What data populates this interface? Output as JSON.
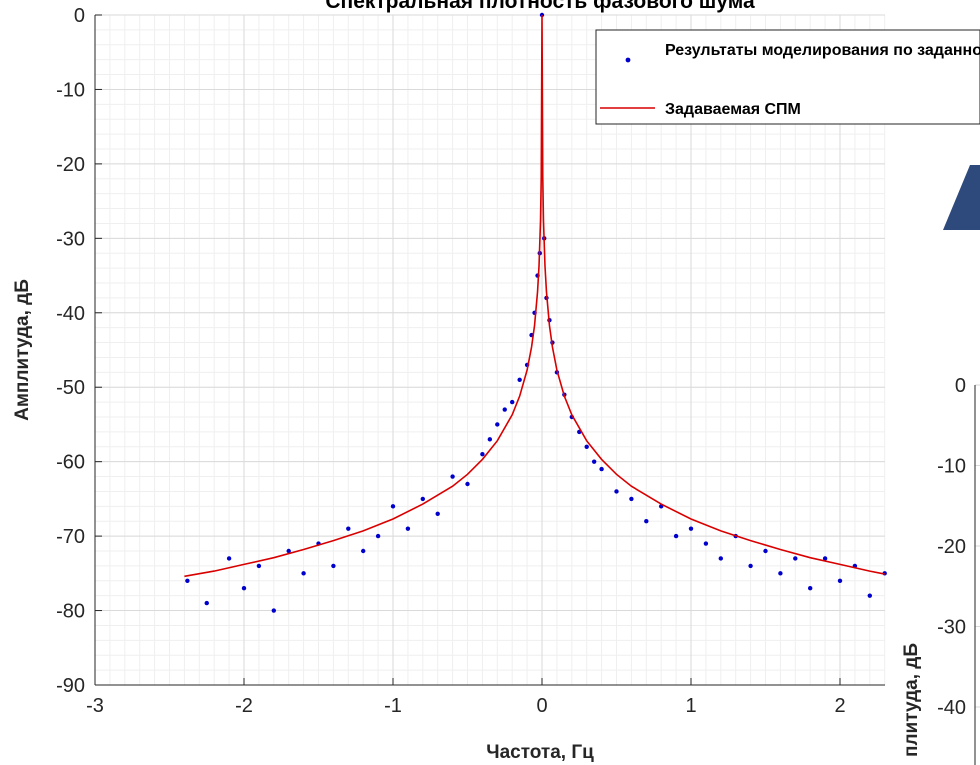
{
  "chart_data": [
    {
      "type": "scatter",
      "title": "Спектральная плотность фазового шума",
      "xlabel": "Частота, Гц",
      "ylabel": "Амплитуда, дБ",
      "xlim": [
        -3,
        2.3
      ],
      "ylim": [
        -90,
        0
      ],
      "xticks": [
        -3,
        -2,
        -1,
        0,
        1,
        2
      ],
      "xtick_labels": [
        "-3",
        "-2",
        "-1",
        "0",
        "1",
        "2"
      ],
      "yticks": [
        0,
        -10,
        -20,
        -30,
        -40,
        -50,
        -60,
        -70,
        -80,
        -90
      ],
      "ytick_labels": [
        "0",
        "-10",
        "-20",
        "-30",
        "-40",
        "-50",
        "-60",
        "-70",
        "-80",
        "-90"
      ],
      "grid": true,
      "minor_grid": true,
      "legend_position": "top-right",
      "series": [
        {
          "name": "Результаты моделирования по заданной СПМ",
          "kind": "scatter",
          "color": "#0000CD",
          "x": [
            -2.38,
            -2.25,
            -2.1,
            -2.0,
            -1.9,
            -1.8,
            -1.7,
            -1.6,
            -1.5,
            -1.4,
            -1.3,
            -1.2,
            -1.1,
            -1.0,
            -0.9,
            -0.8,
            -0.7,
            -0.6,
            -0.5,
            -0.4,
            -0.35,
            -0.3,
            -0.25,
            -0.2,
            -0.15,
            -0.1,
            -0.07,
            -0.05,
            -0.03,
            -0.015,
            0.0,
            0.015,
            0.03,
            0.05,
            0.07,
            0.1,
            0.15,
            0.2,
            0.25,
            0.3,
            0.35,
            0.4,
            0.5,
            0.6,
            0.7,
            0.8,
            0.9,
            1.0,
            1.1,
            1.2,
            1.3,
            1.4,
            1.5,
            1.6,
            1.7,
            1.8,
            1.9,
            2.0,
            2.1,
            2.2,
            2.3
          ],
          "y": [
            -76,
            -79,
            -73,
            -77,
            -74,
            -80,
            -72,
            -75,
            -71,
            -74,
            -69,
            -72,
            -70,
            -66,
            -69,
            -65,
            -67,
            -62,
            -63,
            -59,
            -57,
            -55,
            -53,
            -52,
            -49,
            -47,
            -43,
            -40,
            -35,
            -32,
            0,
            -30,
            -38,
            -41,
            -44,
            -48,
            -51,
            -54,
            -56,
            -58,
            -60,
            -61,
            -64,
            -65,
            -68,
            -66,
            -70,
            -69,
            -71,
            -73,
            -70,
            -74,
            -72,
            -75,
            -73,
            -77,
            -73,
            -76,
            -74,
            -78,
            -75
          ]
        },
        {
          "name": "Задаваемая СПМ",
          "kind": "line",
          "color": "#D90000",
          "x": [
            -2.4,
            -2.2,
            -2.0,
            -1.8,
            -1.6,
            -1.4,
            -1.2,
            -1.0,
            -0.8,
            -0.6,
            -0.5,
            -0.4,
            -0.3,
            -0.2,
            -0.15,
            -0.1,
            -0.07,
            -0.05,
            -0.03,
            -0.02,
            -0.01,
            -0.005,
            0.0,
            0.005,
            0.01,
            0.02,
            0.03,
            0.05,
            0.07,
            0.1,
            0.15,
            0.2,
            0.3,
            0.4,
            0.5,
            0.6,
            0.8,
            1.0,
            1.2,
            1.4,
            1.6,
            1.8,
            2.0,
            2.2,
            2.3
          ],
          "y": [
            -75.4,
            -74.7,
            -73.8,
            -72.9,
            -71.8,
            -70.6,
            -69.3,
            -67.7,
            -65.7,
            -63.3,
            -61.7,
            -59.7,
            -57.2,
            -53.7,
            -51.2,
            -47.7,
            -44.6,
            -41.7,
            -37.2,
            -33.7,
            -27.7,
            -21.7,
            0,
            -21.7,
            -27.7,
            -33.7,
            -37.2,
            -41.7,
            -44.6,
            -47.7,
            -51.2,
            -53.7,
            -57.2,
            -59.7,
            -61.7,
            -63.3,
            -65.7,
            -67.7,
            -69.3,
            -70.6,
            -71.8,
            -72.9,
            -73.8,
            -74.7,
            -75.1
          ]
        }
      ]
    },
    {
      "type": "scatter",
      "title": "",
      "xlabel": "",
      "ylabel": "Амплитуда, дБ",
      "ylabel_visible_text": "плитуда, дБ",
      "ylim": [
        -40,
        0
      ],
      "yticks": [
        0,
        -10,
        -20,
        -30,
        -40
      ],
      "ytick_labels": [
        "0",
        "-10",
        "-20",
        "-30",
        "-40"
      ],
      "grid": true,
      "note": "second chart partially visible, cropped at bottom-right"
    }
  ],
  "colors": {
    "scatter": "#0000CD",
    "line": "#D90000",
    "grid_major": "#DADADA",
    "grid_minor": "#EFEFEF",
    "axis": "#262626",
    "arrow": "#2E4A7D"
  }
}
